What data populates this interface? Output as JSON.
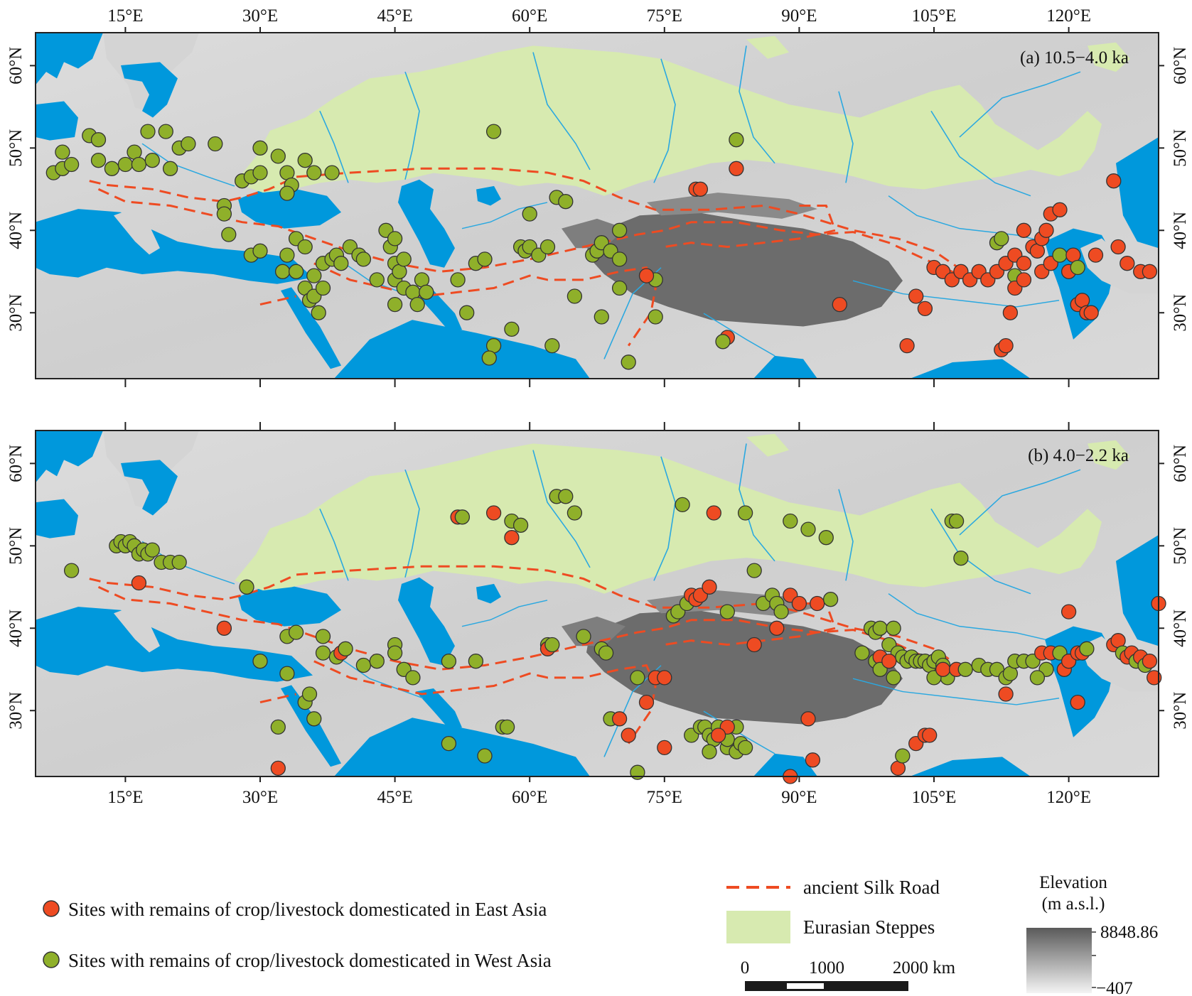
{
  "map": {
    "panels": [
      {
        "id": "a",
        "label": "(a) 10.5−4.0 ka"
      },
      {
        "id": "b",
        "label": "(b) 4.0−2.2 ka"
      }
    ],
    "lon_ticks": [
      "15°E",
      "30°E",
      "45°E",
      "60°E",
      "75°E",
      "90°E",
      "105°E",
      "120°E"
    ],
    "lat_ticks": [
      "60°N",
      "50°N",
      "40°N",
      "30°N"
    ],
    "lon_values": [
      15,
      30,
      45,
      60,
      75,
      90,
      105,
      120
    ],
    "lat_values": [
      60,
      50,
      40,
      30
    ],
    "extent": {
      "lon": [
        5,
        130
      ],
      "lat": [
        22,
        64
      ]
    }
  },
  "legend": {
    "east_asia": "Sites with remains of crop/livestock domesticated in East Asia",
    "west_asia": "Sites with remains of crop/livestock domesticated in West Asia",
    "silk_road": "ancient Silk Road",
    "steppes": "Eurasian Steppes"
  },
  "scale_bar": {
    "label_0": "0",
    "label_1000": "1000",
    "label_2000": "2000 km"
  },
  "elevation": {
    "title_1": "Elevation",
    "title_2": "(m a.s.l.)",
    "max": "8848.86",
    "min": "−407"
  },
  "colors": {
    "ocean": "#0098dc",
    "land": "#d4d4d4",
    "plateau": "#6c6c6c",
    "steppe": "#d7eab0",
    "river": "#2aa8e0",
    "silk_road": "#ee4b22",
    "east_asia": "#ee4b22",
    "west_asia": "#8fb02a"
  },
  "sites": {
    "a": [
      [
        7,
        47,
        "W"
      ],
      [
        8,
        47.5,
        "W"
      ],
      [
        9,
        48,
        "W"
      ],
      [
        8,
        49.5,
        "W"
      ],
      [
        11,
        51.5,
        "W"
      ],
      [
        12,
        51,
        "W"
      ],
      [
        12,
        48.5,
        "W"
      ],
      [
        13.5,
        47.5,
        "W"
      ],
      [
        15,
        48,
        "W"
      ],
      [
        16,
        49.5,
        "W"
      ],
      [
        16.5,
        48,
        "W"
      ],
      [
        17.5,
        52,
        "W"
      ],
      [
        18,
        48.5,
        "W"
      ],
      [
        19.5,
        52,
        "W"
      ],
      [
        20,
        47.5,
        "W"
      ],
      [
        21,
        50,
        "W"
      ],
      [
        22,
        50.5,
        "W"
      ],
      [
        25,
        50.5,
        "W"
      ],
      [
        26,
        43,
        "W"
      ],
      [
        26,
        42,
        "W"
      ],
      [
        26.5,
        39.5,
        "W"
      ],
      [
        28,
        46,
        "W"
      ],
      [
        29,
        46.5,
        "W"
      ],
      [
        30,
        47,
        "W"
      ],
      [
        30,
        50,
        "W"
      ],
      [
        32,
        49,
        "W"
      ],
      [
        33,
        47,
        "W"
      ],
      [
        33.5,
        45.5,
        "W"
      ],
      [
        33,
        44.5,
        "W"
      ],
      [
        35,
        48.5,
        "W"
      ],
      [
        36,
        47,
        "W"
      ],
      [
        38,
        47,
        "W"
      ],
      [
        29,
        37,
        "W"
      ],
      [
        30,
        37.5,
        "W"
      ],
      [
        32.5,
        35,
        "W"
      ],
      [
        33,
        37,
        "W"
      ],
      [
        34,
        35,
        "W"
      ],
      [
        34,
        39,
        "W"
      ],
      [
        35,
        38,
        "W"
      ],
      [
        35,
        33,
        "W"
      ],
      [
        35.5,
        31.5,
        "W"
      ],
      [
        36,
        32,
        "W"
      ],
      [
        36.5,
        30,
        "W"
      ],
      [
        36,
        34.5,
        "W"
      ],
      [
        37,
        33,
        "W"
      ],
      [
        37,
        36,
        "W"
      ],
      [
        38,
        36.5,
        "W"
      ],
      [
        38.5,
        37,
        "W"
      ],
      [
        39,
        36,
        "W"
      ],
      [
        40,
        38,
        "W"
      ],
      [
        41,
        37,
        "W"
      ],
      [
        41.5,
        36.5,
        "W"
      ],
      [
        43,
        34,
        "W"
      ],
      [
        44,
        40,
        "W"
      ],
      [
        44.5,
        38,
        "W"
      ],
      [
        45,
        39,
        "W"
      ],
      [
        45,
        36,
        "W"
      ],
      [
        45,
        34,
        "W"
      ],
      [
        45.5,
        35,
        "W"
      ],
      [
        46,
        36.5,
        "W"
      ],
      [
        46,
        33,
        "W"
      ],
      [
        47,
        32.5,
        "W"
      ],
      [
        47.5,
        31,
        "W"
      ],
      [
        48,
        34,
        "W"
      ],
      [
        48.5,
        32.5,
        "W"
      ],
      [
        45,
        31,
        "W"
      ],
      [
        52,
        34,
        "W"
      ],
      [
        53,
        30,
        "W"
      ],
      [
        54,
        36,
        "W"
      ],
      [
        55,
        36.5,
        "W"
      ],
      [
        56,
        26,
        "W"
      ],
      [
        55.5,
        24.5,
        "W"
      ],
      [
        56,
        52,
        "W"
      ],
      [
        58,
        28,
        "W"
      ],
      [
        59,
        38,
        "W"
      ],
      [
        59.5,
        37.5,
        "W"
      ],
      [
        60,
        38,
        "W"
      ],
      [
        60,
        42,
        "W"
      ],
      [
        61,
        37,
        "W"
      ],
      [
        62,
        38,
        "W"
      ],
      [
        62.5,
        26,
        "W"
      ],
      [
        63,
        44,
        "W"
      ],
      [
        64,
        43.5,
        "W"
      ],
      [
        65,
        32,
        "W"
      ],
      [
        67,
        37,
        "W"
      ],
      [
        67.5,
        37.5,
        "W"
      ],
      [
        68,
        38.5,
        "W"
      ],
      [
        68,
        29.5,
        "W"
      ],
      [
        69,
        37.5,
        "W"
      ],
      [
        70,
        36.5,
        "W"
      ],
      [
        70,
        40,
        "W"
      ],
      [
        70,
        33,
        "W"
      ],
      [
        71,
        24,
        "W"
      ],
      [
        74,
        34,
        "W"
      ],
      [
        74,
        29.5,
        "W"
      ],
      [
        73,
        34.5,
        "E"
      ],
      [
        78.5,
        45,
        "E"
      ],
      [
        79,
        45,
        "E"
      ],
      [
        83,
        51,
        "W"
      ],
      [
        83,
        47.5,
        "E"
      ],
      [
        82,
        27,
        "E"
      ],
      [
        81.5,
        26.5,
        "W"
      ],
      [
        94.5,
        31,
        "E"
      ],
      [
        102,
        26,
        "E"
      ],
      [
        103,
        32,
        "E"
      ],
      [
        104,
        30.5,
        "E"
      ],
      [
        105,
        35.5,
        "E"
      ],
      [
        106,
        35,
        "E"
      ],
      [
        107,
        34,
        "E"
      ],
      [
        108,
        35,
        "E"
      ],
      [
        109,
        34,
        "E"
      ],
      [
        110,
        35,
        "E"
      ],
      [
        111,
        34,
        "E"
      ],
      [
        112,
        35,
        "E"
      ],
      [
        112,
        38.5,
        "W"
      ],
      [
        112.5,
        39,
        "W"
      ],
      [
        113,
        36,
        "E"
      ],
      [
        114,
        37,
        "E"
      ],
      [
        114,
        34.5,
        "W"
      ],
      [
        114,
        33,
        "E"
      ],
      [
        115,
        34,
        "E"
      ],
      [
        115,
        36,
        "E"
      ],
      [
        116,
        38,
        "E"
      ],
      [
        116.5,
        37.5,
        "E"
      ],
      [
        117,
        35,
        "E"
      ],
      [
        117,
        39,
        "E"
      ],
      [
        118,
        36,
        "E"
      ],
      [
        118,
        42,
        "E"
      ],
      [
        119,
        42.5,
        "E"
      ],
      [
        119,
        37,
        "W"
      ],
      [
        120,
        35,
        "E"
      ],
      [
        120.5,
        37,
        "E"
      ],
      [
        121,
        35.5,
        "W"
      ],
      [
        121,
        31,
        "E"
      ],
      [
        121.5,
        31.5,
        "E"
      ],
      [
        122,
        30,
        "E"
      ],
      [
        122.5,
        30,
        "E"
      ],
      [
        123,
        37,
        "E"
      ],
      [
        112.5,
        25.5,
        "E"
      ],
      [
        113,
        26,
        "E"
      ],
      [
        113.5,
        30,
        "E"
      ],
      [
        115,
        40,
        "E"
      ],
      [
        125,
        46,
        "E"
      ],
      [
        125.5,
        38,
        "E"
      ],
      [
        126.5,
        36,
        "E"
      ],
      [
        128,
        35,
        "E"
      ],
      [
        129,
        35,
        "E"
      ],
      [
        117.5,
        40,
        "E"
      ]
    ],
    "b": [
      [
        9,
        47,
        "W"
      ],
      [
        14,
        50,
        "W"
      ],
      [
        14.5,
        50.5,
        "W"
      ],
      [
        15,
        50,
        "W"
      ],
      [
        15.5,
        50.5,
        "W"
      ],
      [
        16,
        50,
        "W"
      ],
      [
        16.5,
        49,
        "W"
      ],
      [
        17,
        49.5,
        "W"
      ],
      [
        17.5,
        49,
        "W"
      ],
      [
        18,
        49.5,
        "W"
      ],
      [
        19,
        48,
        "W"
      ],
      [
        20,
        48,
        "W"
      ],
      [
        21,
        48,
        "W"
      ],
      [
        16.5,
        45.5,
        "E"
      ],
      [
        26,
        40,
        "E"
      ],
      [
        28.5,
        45,
        "W"
      ],
      [
        33,
        39,
        "W"
      ],
      [
        34,
        39.5,
        "W"
      ],
      [
        37,
        39,
        "W"
      ],
      [
        37,
        37,
        "W"
      ],
      [
        38.5,
        36.5,
        "W"
      ],
      [
        39,
        37,
        "E"
      ],
      [
        39.5,
        37.5,
        "W"
      ],
      [
        32,
        28,
        "W"
      ],
      [
        33,
        34.5,
        "W"
      ],
      [
        35,
        31,
        "W"
      ],
      [
        35.5,
        32,
        "W"
      ],
      [
        36,
        29,
        "W"
      ],
      [
        32,
        23,
        "E"
      ],
      [
        30,
        36,
        "W"
      ],
      [
        41.5,
        35.5,
        "W"
      ],
      [
        43,
        36,
        "W"
      ],
      [
        45,
        38,
        "W"
      ],
      [
        45,
        37,
        "W"
      ],
      [
        46,
        35,
        "W"
      ],
      [
        47,
        34,
        "W"
      ],
      [
        51,
        36,
        "W"
      ],
      [
        51,
        26,
        "W"
      ],
      [
        52,
        53.5,
        "E"
      ],
      [
        52.5,
        53.5,
        "W"
      ],
      [
        54,
        36,
        "W"
      ],
      [
        55,
        24.5,
        "W"
      ],
      [
        56,
        54,
        "E"
      ],
      [
        57,
        28,
        "W"
      ],
      [
        57.5,
        28,
        "W"
      ],
      [
        58,
        53,
        "W"
      ],
      [
        58,
        51,
        "E"
      ],
      [
        59,
        52.5,
        "W"
      ],
      [
        62,
        38,
        "W"
      ],
      [
        62,
        37.5,
        "E"
      ],
      [
        62.5,
        38,
        "W"
      ],
      [
        63,
        56,
        "W"
      ],
      [
        64,
        56,
        "W"
      ],
      [
        65,
        54,
        "W"
      ],
      [
        66,
        39,
        "W"
      ],
      [
        68,
        37.5,
        "W"
      ],
      [
        68.5,
        37,
        "W"
      ],
      [
        69,
        29,
        "W"
      ],
      [
        70,
        29,
        "E"
      ],
      [
        71,
        27,
        "E"
      ],
      [
        72,
        34,
        "W"
      ],
      [
        72,
        22.5,
        "W"
      ],
      [
        73,
        31,
        "E"
      ],
      [
        74,
        34,
        "E"
      ],
      [
        75,
        34,
        "E"
      ],
      [
        75,
        25.5,
        "E"
      ],
      [
        76,
        41.5,
        "W"
      ],
      [
        76.5,
        42,
        "W"
      ],
      [
        77,
        55,
        "W"
      ],
      [
        77.5,
        43,
        "W"
      ],
      [
        78,
        44,
        "E"
      ],
      [
        78.5,
        43.5,
        "E"
      ],
      [
        79,
        44,
        "E"
      ],
      [
        78,
        27,
        "W"
      ],
      [
        79,
        28,
        "W"
      ],
      [
        79.5,
        28,
        "W"
      ],
      [
        80,
        27,
        "W"
      ],
      [
        80.5,
        26.5,
        "W"
      ],
      [
        81,
        28,
        "W"
      ],
      [
        81.5,
        27,
        "W"
      ],
      [
        82,
        25.5,
        "W"
      ],
      [
        82,
        26.5,
        "W"
      ],
      [
        83,
        25,
        "W"
      ],
      [
        83.5,
        26,
        "W"
      ],
      [
        84,
        25.5,
        "W"
      ],
      [
        83,
        28,
        "W"
      ],
      [
        82,
        28,
        "E"
      ],
      [
        81,
        27,
        "E"
      ],
      [
        80,
        25,
        "W"
      ],
      [
        80.5,
        54,
        "E"
      ],
      [
        80,
        45,
        "E"
      ],
      [
        82,
        42,
        "W"
      ],
      [
        84,
        54,
        "W"
      ],
      [
        85,
        47,
        "W"
      ],
      [
        85,
        38,
        "E"
      ],
      [
        86,
        43,
        "W"
      ],
      [
        87,
        44,
        "W"
      ],
      [
        87.5,
        43,
        "W"
      ],
      [
        87.5,
        40,
        "E"
      ],
      [
        88,
        42,
        "W"
      ],
      [
        89,
        44,
        "E"
      ],
      [
        89,
        53,
        "W"
      ],
      [
        90,
        43,
        "E"
      ],
      [
        91,
        52,
        "W"
      ],
      [
        91,
        29,
        "E"
      ],
      [
        92,
        43,
        "E"
      ],
      [
        93,
        51,
        "W"
      ],
      [
        93.5,
        43.5,
        "W"
      ],
      [
        89,
        22,
        "E"
      ],
      [
        91.5,
        24,
        "E"
      ],
      [
        98,
        40,
        "W"
      ],
      [
        98.5,
        39.5,
        "W"
      ],
      [
        99,
        40,
        "W"
      ],
      [
        100,
        38,
        "W"
      ],
      [
        100.5,
        40,
        "W"
      ],
      [
        101,
        37,
        "W"
      ],
      [
        101.5,
        36.5,
        "W"
      ],
      [
        102,
        36,
        "W"
      ],
      [
        102.5,
        36.5,
        "W"
      ],
      [
        103,
        36,
        "W"
      ],
      [
        103.5,
        36,
        "W"
      ],
      [
        104,
        36,
        "W"
      ],
      [
        104.5,
        35.5,
        "W"
      ],
      [
        105,
        36,
        "W"
      ],
      [
        105.5,
        36.5,
        "W"
      ],
      [
        106,
        35.5,
        "W"
      ],
      [
        106.5,
        34,
        "W"
      ],
      [
        107,
        53,
        "W"
      ],
      [
        107.5,
        53,
        "W"
      ],
      [
        108,
        48.5,
        "W"
      ],
      [
        97,
        37,
        "W"
      ],
      [
        98.5,
        36,
        "W"
      ],
      [
        99,
        36.5,
        "E"
      ],
      [
        99,
        35,
        "W"
      ],
      [
        100,
        36,
        "E"
      ],
      [
        100.5,
        34,
        "W"
      ],
      [
        101,
        23,
        "E"
      ],
      [
        101.5,
        24.5,
        "W"
      ],
      [
        103,
        26,
        "E"
      ],
      [
        104,
        27,
        "E"
      ],
      [
        104.5,
        27,
        "E"
      ],
      [
        105,
        34,
        "W"
      ],
      [
        106,
        35,
        "E"
      ],
      [
        107.5,
        35,
        "E"
      ],
      [
        108.5,
        35,
        "W"
      ],
      [
        110,
        35.5,
        "W"
      ],
      [
        111,
        35,
        "W"
      ],
      [
        112,
        35,
        "W"
      ],
      [
        113,
        34,
        "W"
      ],
      [
        113.5,
        34.5,
        "W"
      ],
      [
        114,
        36,
        "W"
      ],
      [
        115,
        36,
        "W"
      ],
      [
        116,
        36,
        "W"
      ],
      [
        117,
        37,
        "E"
      ],
      [
        117.5,
        35,
        "W"
      ],
      [
        118,
        37,
        "E"
      ],
      [
        119,
        37,
        "W"
      ],
      [
        119.5,
        35,
        "E"
      ],
      [
        120,
        36,
        "E"
      ],
      [
        121,
        37,
        "E"
      ],
      [
        121.5,
        37,
        "E"
      ],
      [
        122,
        37.5,
        "W"
      ],
      [
        120,
        42,
        "E"
      ],
      [
        121,
        31,
        "E"
      ],
      [
        113,
        32,
        "E"
      ],
      [
        116.5,
        34,
        "W"
      ],
      [
        125,
        38,
        "E"
      ],
      [
        125.5,
        38.5,
        "E"
      ],
      [
        126,
        37,
        "W"
      ],
      [
        126.5,
        36.5,
        "E"
      ],
      [
        127,
        37,
        "E"
      ],
      [
        127.5,
        36,
        "W"
      ],
      [
        128,
        36.5,
        "E"
      ],
      [
        128.5,
        35.5,
        "W"
      ],
      [
        129,
        36,
        "E"
      ],
      [
        129.5,
        34,
        "E"
      ],
      [
        130,
        43,
        "E"
      ]
    ]
  }
}
